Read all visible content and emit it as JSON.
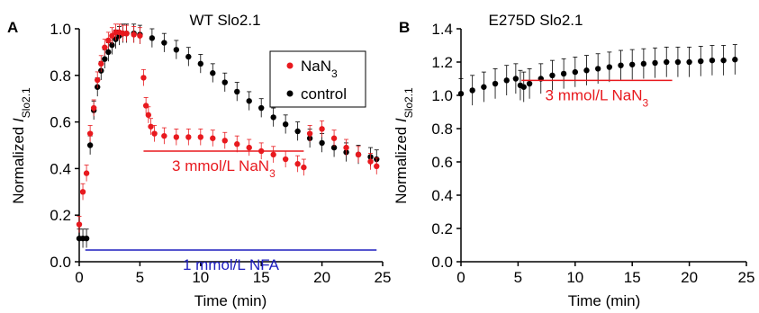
{
  "chart_data": [
    {
      "panel_label": "A",
      "type": "scatter",
      "title": "WT Slo2.1",
      "xlabel": "Time (min)",
      "ylabel_main": "Normalized ",
      "ylabel_italic": "I",
      "ylabel_sub": "Slo2.1",
      "xlim": [
        0,
        25
      ],
      "ylim": [
        0,
        1.0
      ],
      "xticks": [
        0,
        5,
        10,
        15,
        20,
        25
      ],
      "xtick_labels": [
        "0",
        "5",
        "10",
        "15",
        "20",
        "25"
      ],
      "yticks": [
        0,
        0.2,
        0.4,
        0.6,
        0.8,
        1.0
      ],
      "ytick_labels": [
        "0.0",
        "0.2",
        "0.4",
        "0.6",
        "0.8",
        "1.0"
      ],
      "grid": false,
      "legend_position": "top-right",
      "legend": [
        {
          "label_main": "NaN",
          "label_sub": "3",
          "color": "#e8191e"
        },
        {
          "label_main": "control",
          "label_sub": "",
          "color": "#000000"
        }
      ],
      "series": [
        {
          "name": "control",
          "color": "#000000",
          "x": [
            0,
            0.3,
            0.6,
            0.9,
            1.2,
            1.5,
            1.8,
            2.1,
            2.4,
            2.7,
            3.0,
            3.3,
            3.6,
            3.9,
            4.5,
            5,
            6,
            7,
            8,
            9,
            10,
            11,
            12,
            13,
            14,
            15,
            16,
            17,
            18,
            19,
            20,
            21,
            22,
            23,
            24,
            24.5
          ],
          "y": [
            0.1,
            0.1,
            0.1,
            0.5,
            0.65,
            0.75,
            0.82,
            0.87,
            0.9,
            0.93,
            0.955,
            0.97,
            0.98,
            0.98,
            0.98,
            0.975,
            0.96,
            0.94,
            0.91,
            0.88,
            0.85,
            0.81,
            0.77,
            0.73,
            0.69,
            0.66,
            0.62,
            0.59,
            0.56,
            0.53,
            0.51,
            0.49,
            0.47,
            0.46,
            0.45,
            0.44
          ],
          "error": 0.04
        },
        {
          "name": "NaN3",
          "color": "#e8191e",
          "x": [
            0,
            0.3,
            0.6,
            0.9,
            1.2,
            1.5,
            1.8,
            2.1,
            2.4,
            2.7,
            3.0,
            3.3,
            3.6,
            3.9,
            4.5,
            5,
            5.3,
            5.5,
            5.7,
            5.9,
            6.2,
            7,
            8,
            9,
            10,
            11,
            12,
            13,
            14,
            15,
            16,
            17,
            18,
            18.5,
            19,
            20,
            21,
            22,
            23,
            24,
            24.5
          ],
          "y": [
            0.16,
            0.3,
            0.38,
            0.55,
            0.66,
            0.78,
            0.85,
            0.92,
            0.95,
            0.97,
            0.985,
            0.985,
            0.98,
            0.98,
            0.975,
            0.97,
            0.79,
            0.67,
            0.63,
            0.58,
            0.55,
            0.54,
            0.535,
            0.535,
            0.535,
            0.53,
            0.52,
            0.505,
            0.49,
            0.475,
            0.46,
            0.44,
            0.42,
            0.405,
            0.55,
            0.57,
            0.53,
            0.49,
            0.46,
            0.43,
            0.41
          ],
          "error": 0.035
        }
      ],
      "bars": [
        {
          "label_main": "3 mmol/L NaN",
          "label_sub": "3",
          "x_start": 5.3,
          "x_end": 18.5,
          "y": 0.475,
          "color": "#e8191e"
        },
        {
          "label_main": "1 mmol/L NFA",
          "label_sub": "",
          "x_start": 0.5,
          "x_end": 24.5,
          "y": 0.05,
          "color": "#1f1fbf"
        }
      ]
    },
    {
      "panel_label": "B",
      "type": "scatter",
      "title": "E275D Slo2.1",
      "xlabel": "Time (min)",
      "ylabel_main": "Normalized ",
      "ylabel_italic": "I",
      "ylabel_sub": "Slo2.1",
      "xlim": [
        0,
        25
      ],
      "ylim": [
        0,
        1.4
      ],
      "xticks": [
        0,
        5,
        10,
        15,
        20,
        25
      ],
      "xtick_labels": [
        "0",
        "5",
        "10",
        "15",
        "20",
        "25"
      ],
      "yticks": [
        0,
        0.2,
        0.4,
        0.6,
        0.8,
        1.0,
        1.2,
        1.4
      ],
      "ytick_labels": [
        "0.0",
        "0.2",
        "0.4",
        "0.6",
        "0.8",
        "1.0",
        "1.2",
        "1.4"
      ],
      "grid": false,
      "series": [
        {
          "name": "E275D",
          "color": "#000000",
          "x": [
            0,
            1,
            2,
            3,
            4,
            4.8,
            5.2,
            5.5,
            6,
            7,
            8,
            9,
            10,
            11,
            12,
            13,
            14,
            15,
            16,
            17,
            18,
            19,
            20,
            21,
            22,
            23,
            24
          ],
          "y": [
            1.01,
            1.03,
            1.05,
            1.07,
            1.09,
            1.1,
            1.06,
            1.05,
            1.07,
            1.1,
            1.12,
            1.13,
            1.14,
            1.15,
            1.16,
            1.17,
            1.18,
            1.185,
            1.19,
            1.195,
            1.2,
            1.2,
            1.2,
            1.205,
            1.21,
            1.21,
            1.215
          ],
          "error": 0.09
        }
      ],
      "bars": [
        {
          "label_main": "3 mmol/L NaN",
          "label_sub": "3",
          "x_start": 5.3,
          "x_end": 18.5,
          "y": 1.09,
          "color": "#e8191e"
        }
      ]
    }
  ]
}
